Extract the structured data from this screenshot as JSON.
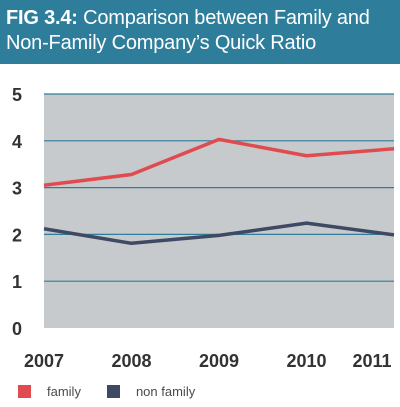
{
  "title": {
    "prefix": "FIG 3.4:",
    "line1_rest": "Comparison between Family and",
    "line2": "Non-Family Company’s Quick Ratio"
  },
  "colors": {
    "banner": "#2e7e9b",
    "plot_bg": "#c6cacc",
    "grid": "#2e7e9b",
    "family": "#e04b50",
    "non_family": "#3e4a64",
    "tick_text": "#333333"
  },
  "chart_data": {
    "type": "line",
    "title": "FIG 3.4: Comparison between Family and Non-Family Company’s Quick Ratio",
    "xlabel": "",
    "ylabel": "",
    "x": [
      "2007",
      "2008",
      "2009",
      "2010",
      "2011"
    ],
    "ylim": [
      0,
      5
    ],
    "yticks": [
      "0",
      "1",
      "2",
      "3",
      "4",
      "5"
    ],
    "grid": true,
    "legend_position": "bottom-left",
    "series": [
      {
        "name": "family",
        "color": "#e04b50",
        "values": [
          3.05,
          3.28,
          4.03,
          3.68,
          3.83
        ]
      },
      {
        "name": "non family",
        "color": "#3e4a64",
        "values": [
          2.12,
          1.81,
          1.98,
          2.24,
          1.99
        ]
      }
    ]
  }
}
